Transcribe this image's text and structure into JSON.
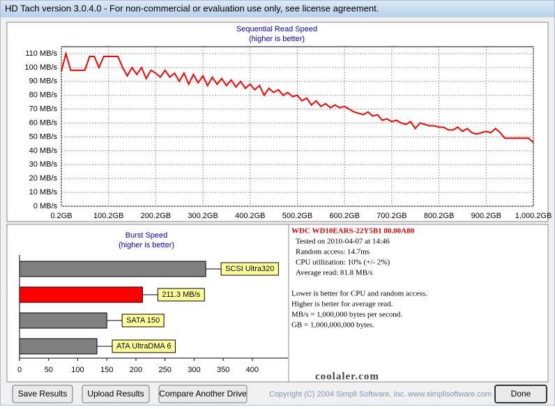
{
  "window": {
    "title": "HD Tach version 3.0.4.0  - For non-commercial or evaluation use only, see license agreement."
  },
  "chart_data": [
    {
      "type": "line",
      "title": "Sequential Read Speed",
      "subtitle": "(higher is better)",
      "color": "#ff0000",
      "grid": true,
      "x": [
        0,
        10,
        20,
        30,
        40,
        50,
        60,
        70,
        80,
        90,
        100,
        110,
        120,
        130,
        140,
        150,
        160,
        170,
        180,
        190,
        200,
        210,
        220,
        230,
        240,
        250,
        260,
        270,
        280,
        290,
        300,
        310,
        320,
        330,
        340,
        350,
        360,
        370,
        380,
        390,
        400,
        410,
        420,
        430,
        440,
        450,
        460,
        470,
        480,
        490,
        500,
        510,
        520,
        530,
        540,
        550,
        560,
        570,
        580,
        590,
        600,
        610,
        620,
        630,
        640,
        650,
        660,
        670,
        680,
        690,
        700,
        710,
        720,
        730,
        740,
        750,
        760,
        770,
        780,
        790,
        800,
        810,
        820,
        830,
        840,
        850,
        860,
        870,
        880,
        890,
        900,
        910,
        920,
        930,
        940,
        950,
        960,
        970,
        980,
        990,
        1000
      ],
      "values": [
        97,
        110,
        98,
        98,
        98,
        98,
        108,
        108,
        100,
        108,
        108,
        108,
        108,
        100,
        94,
        100,
        95,
        100,
        92,
        98,
        96,
        93,
        98,
        93,
        96,
        90,
        96,
        88,
        95,
        89,
        94,
        87,
        93,
        88,
        92,
        87,
        91,
        86,
        90,
        85,
        88,
        84,
        87,
        80,
        85,
        82,
        84,
        80,
        82,
        79,
        80,
        76,
        78,
        73,
        76,
        72,
        74,
        71,
        73,
        71,
        72,
        70,
        68,
        67,
        66,
        68,
        65,
        66,
        62,
        63,
        61,
        62,
        60,
        59,
        61,
        56,
        60,
        59,
        58,
        58,
        57,
        57,
        55,
        55,
        57,
        54,
        56,
        53,
        52,
        53,
        54,
        53,
        56,
        53,
        49,
        49,
        49,
        49,
        49,
        49,
        46
      ],
      "xlim": [
        0.2,
        1000.2
      ],
      "xticks": [
        {
          "value": 0.2,
          "label": "0.2GB"
        },
        {
          "value": 100.2,
          "label": "100.2GB"
        },
        {
          "value": 200.2,
          "label": "200.2GB"
        },
        {
          "value": 300.2,
          "label": "300.2GB"
        },
        {
          "value": 400.2,
          "label": "400.2GB"
        },
        {
          "value": 500.2,
          "label": "500.2GB"
        },
        {
          "value": 600.2,
          "label": "600.2GB"
        },
        {
          "value": 700.2,
          "label": "700.2GB"
        },
        {
          "value": 800.2,
          "label": "800.2GB"
        },
        {
          "value": 900.2,
          "label": "900.2GB"
        },
        {
          "value": 1000.2,
          "label": "1,000.2GB"
        }
      ],
      "ylim": [
        0,
        110
      ],
      "yticks": [
        {
          "value": 0,
          "label": "0 MB/s"
        },
        {
          "value": 10,
          "label": "10 MB/s"
        },
        {
          "value": 20,
          "label": "20 MB/s"
        },
        {
          "value": 30,
          "label": "30 MB/s"
        },
        {
          "value": 40,
          "label": "40 MB/s"
        },
        {
          "value": 50,
          "label": "50 MB/s"
        },
        {
          "value": 60,
          "label": "60 MB/s"
        },
        {
          "value": 70,
          "label": "70 MB/s"
        },
        {
          "value": 80,
          "label": "80 MB/s"
        },
        {
          "value": 90,
          "label": "90 MB/s"
        },
        {
          "value": 100,
          "label": "100 MB/s"
        },
        {
          "value": 110,
          "label": "110 MB/s"
        }
      ]
    },
    {
      "type": "bar",
      "horizontal": true,
      "title": "Burst Speed",
      "subtitle": "(higher is better)",
      "categories": [
        "SCSI Ultra320",
        null,
        "SATA 150",
        "ATA UltraDMA 6"
      ],
      "values": [
        320,
        211.3,
        150,
        133
      ],
      "value_labels": [
        null,
        "211.3 MB/s",
        null,
        null
      ],
      "colors": [
        "#808080",
        "#ff0000",
        "#808080",
        "#808080"
      ],
      "xlim": [
        0,
        450
      ],
      "xticks": [
        0,
        50,
        100,
        150,
        200,
        250,
        300,
        350,
        400
      ]
    }
  ],
  "info": {
    "drive": "WDC  WD10EARS-22Y5B1  80.00A80",
    "stats": [
      "Tested on 2010-04-07 at 14:46",
      "Random access: 14.7ms",
      "CPU utilization: 10% (+/- 2%)",
      "Average read: 81.8 MB/s"
    ],
    "notes": [
      "Lower is better for CPU and random access.",
      "Higher is better for average read.",
      "MB/s = 1,000,000 bytes per second.",
      "GB = 1,000,000,000 bytes."
    ],
    "watermark": "coolaler.com"
  },
  "buttons": [
    "Save Results",
    "Upload Results",
    "Compare Another Drive",
    "Done"
  ],
  "copyright": "Copyright (C) 2004 Simpli Software, Inc. www.simplisoftware.com"
}
